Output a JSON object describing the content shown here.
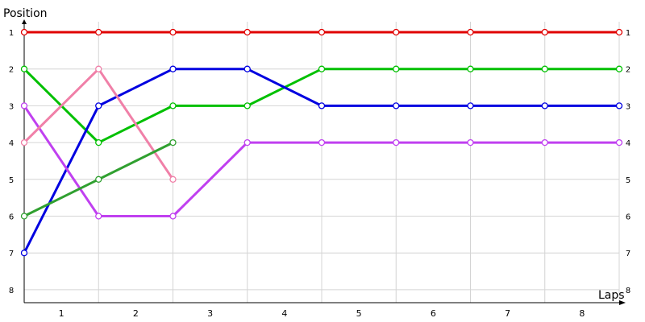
{
  "chart_data": {
    "type": "line",
    "title": "",
    "ylabel": "Position",
    "xlabel": "Laps",
    "x_ticks": [
      "1",
      "2",
      "3",
      "4",
      "5",
      "6",
      "7",
      "8"
    ],
    "y_ticks": [
      "1",
      "2",
      "3",
      "4",
      "5",
      "6",
      "7",
      "8"
    ],
    "right_y_ticks": [
      "1",
      "2",
      "3",
      "4",
      "5",
      "6",
      "7",
      "8"
    ],
    "ylim": [
      1,
      8
    ],
    "y_inverted": true,
    "grid": true,
    "series": [
      {
        "color": "#e00000",
        "positions": [
          1,
          1,
          1,
          1,
          1,
          1,
          1,
          1,
          1
        ]
      },
      {
        "color": "#00c000",
        "positions": [
          2,
          4,
          3,
          3,
          2,
          2,
          2,
          2,
          2
        ]
      },
      {
        "color": "#0000e0",
        "positions": [
          7,
          3,
          2,
          2,
          3,
          3,
          3,
          3,
          3
        ]
      },
      {
        "color": "#c040f0",
        "positions": [
          3,
          6,
          6,
          4,
          4,
          4,
          4,
          4,
          4
        ]
      },
      {
        "color": "#f080a8",
        "positions": [
          4,
          2,
          5
        ]
      },
      {
        "color": "#30a030",
        "positions": [
          6,
          5,
          4
        ]
      }
    ]
  }
}
